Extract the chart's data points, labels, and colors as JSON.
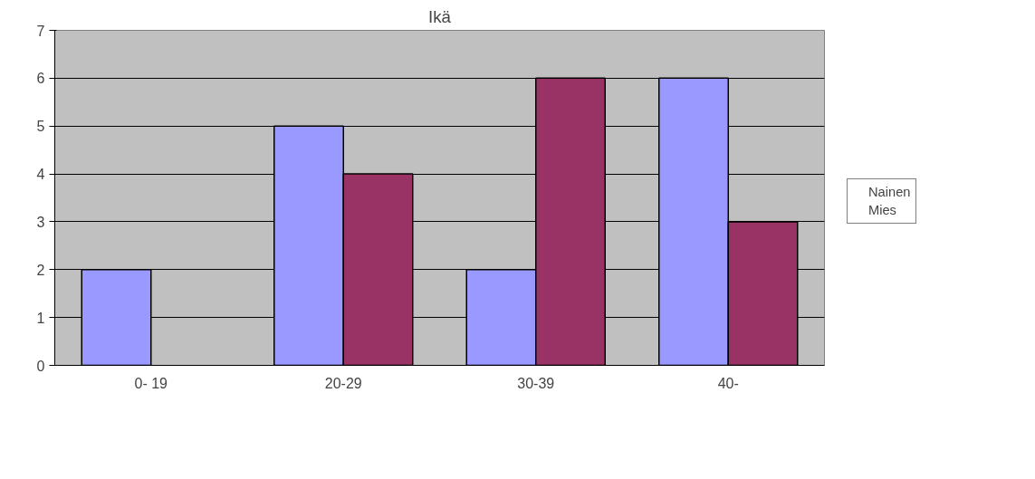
{
  "chart_data": {
    "type": "bar",
    "title": "Ikä",
    "categories": [
      "0- 19",
      "20-29",
      "30-39",
      "40-"
    ],
    "series": [
      {
        "name": "Nainen",
        "color": "#9999ff",
        "values": [
          2,
          5,
          2,
          6
        ]
      },
      {
        "name": "Mies",
        "color": "#993366",
        "values": [
          null,
          4,
          6,
          3
        ]
      }
    ],
    "ylim": [
      0,
      7
    ],
    "yticks": [
      0,
      1,
      2,
      3,
      4,
      5,
      6,
      7
    ],
    "grid": "y",
    "legend": "right"
  }
}
